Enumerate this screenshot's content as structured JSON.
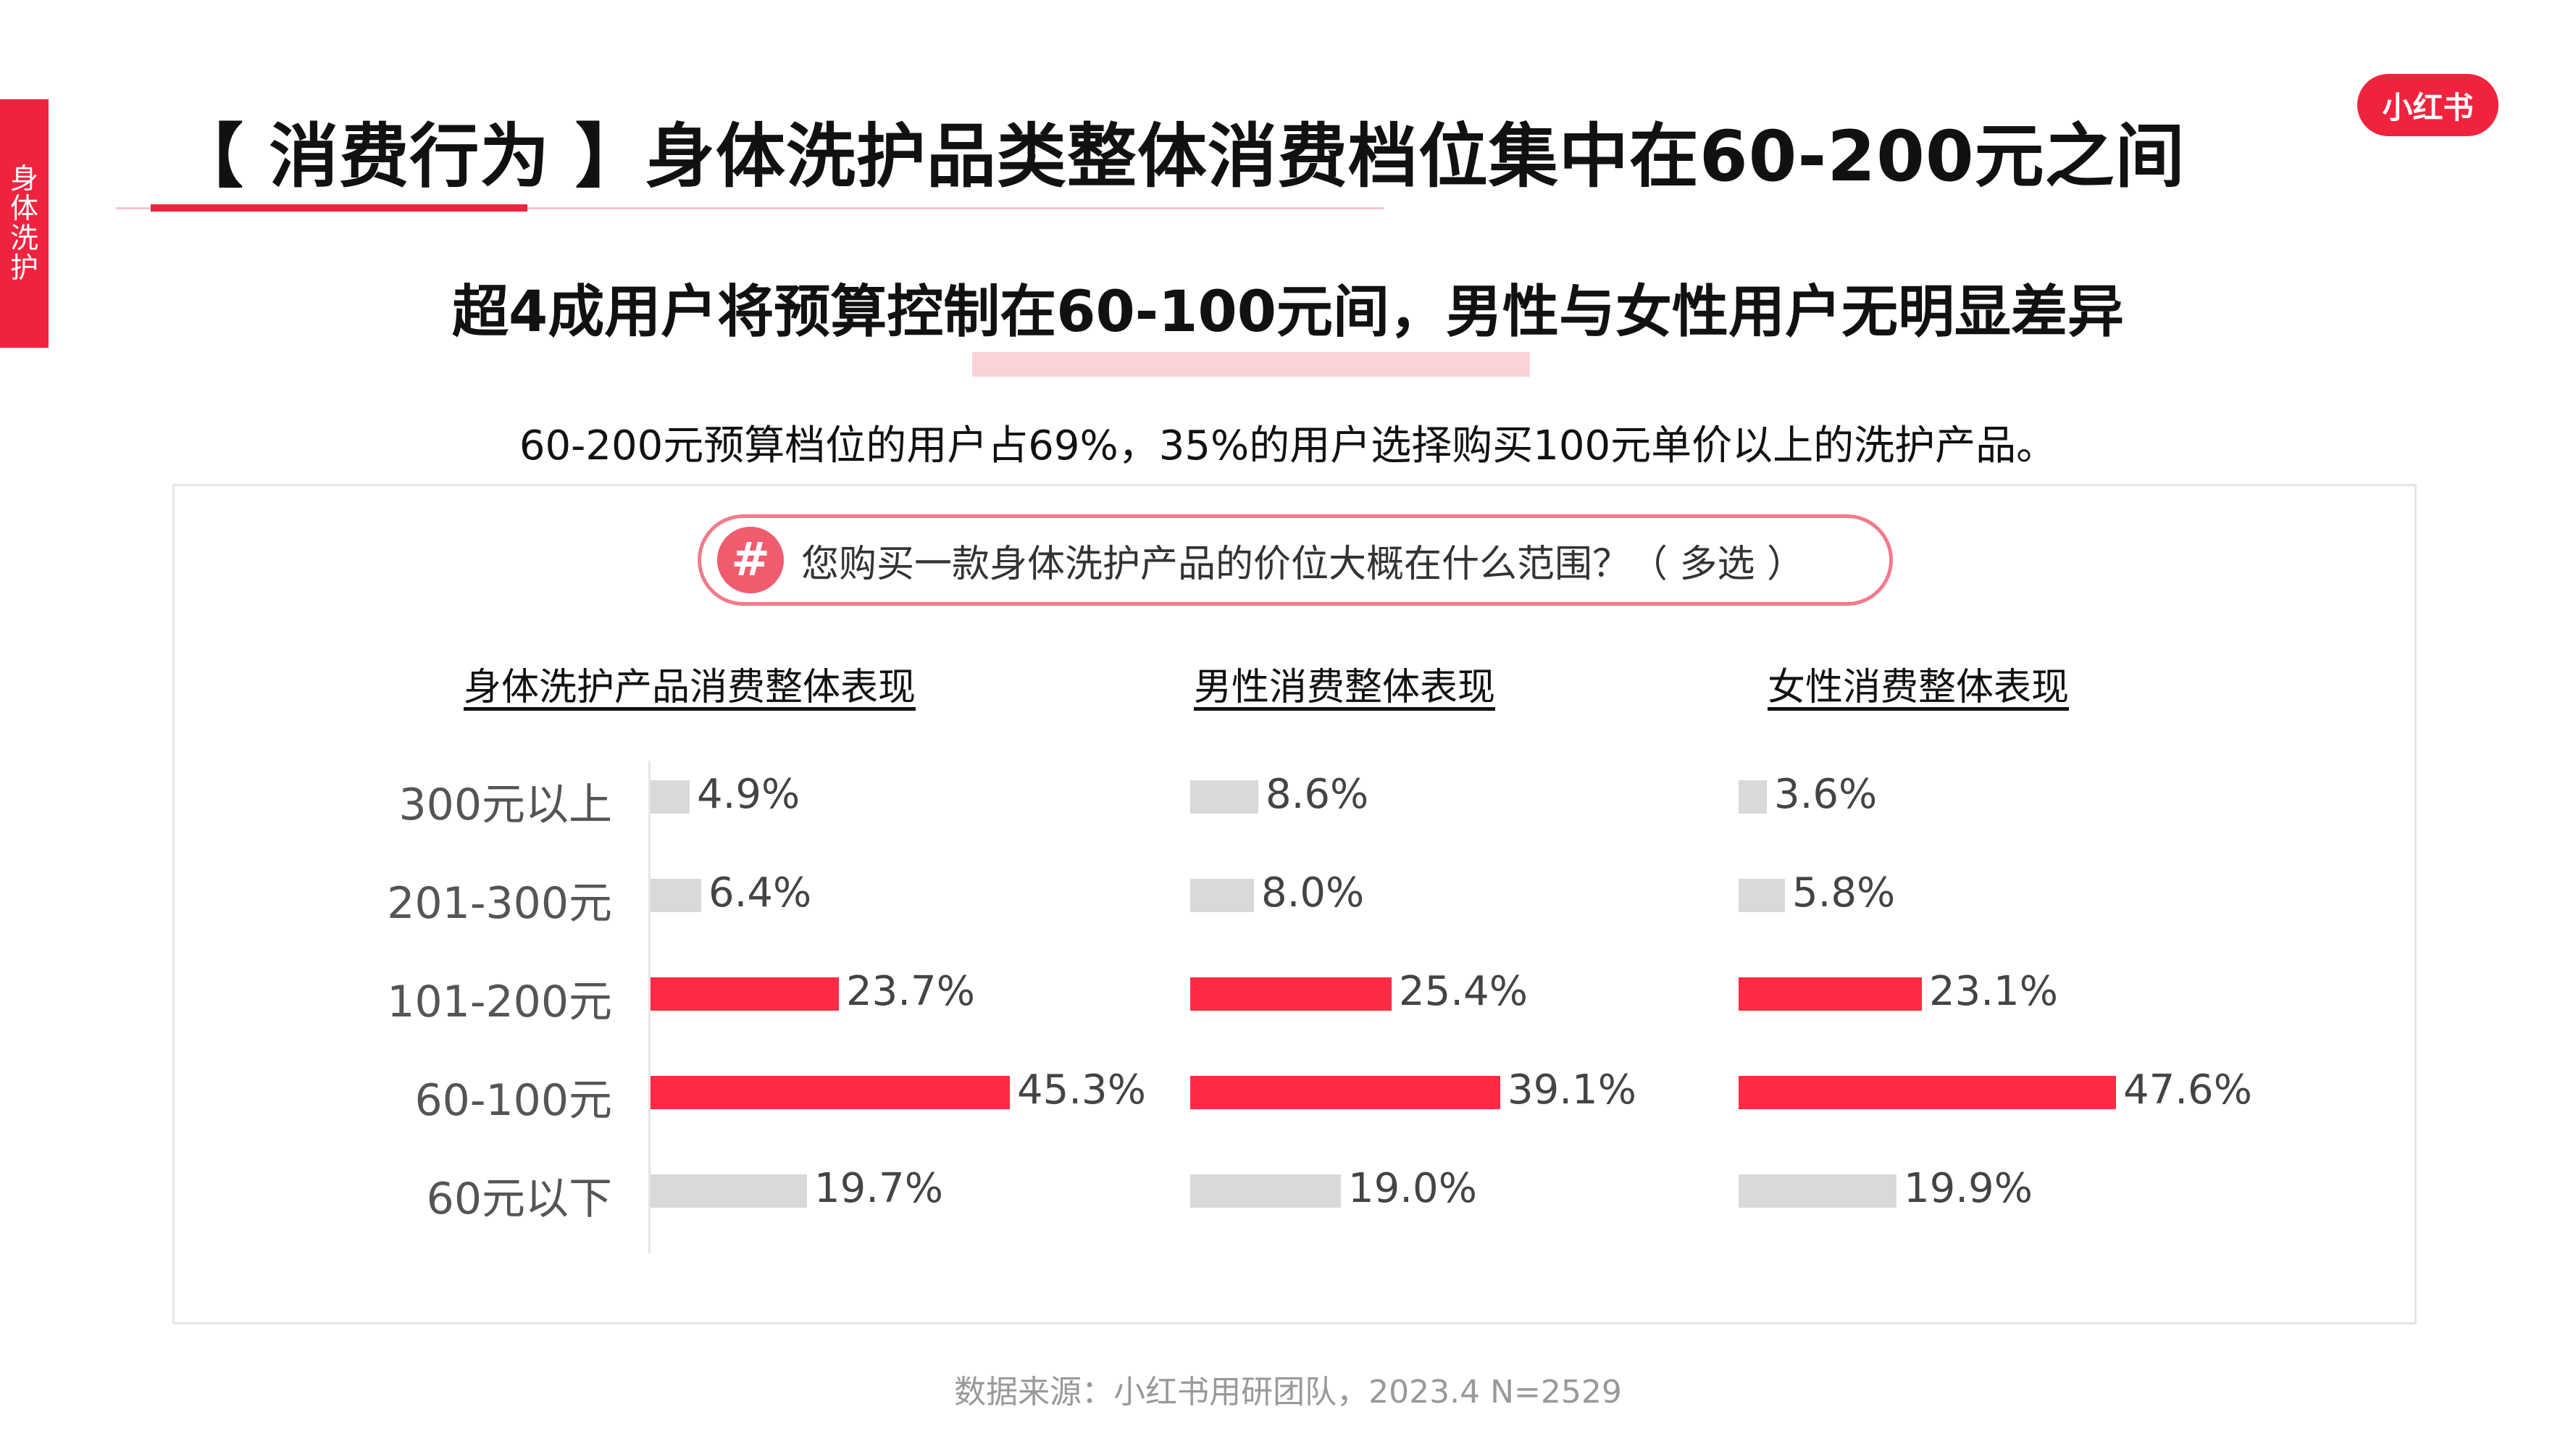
{
  "side_tab": {
    "label": "身体洗护"
  },
  "logo": {
    "text": "小红书"
  },
  "title": "【 消费行为 】身体洗护品类整体消费档位集中在60-200元之间",
  "subtitle": "超4成用户将预算控制在60-100元间，男性与女性用户无明显差异",
  "description": "60-200元预算档位的用户占69%，35%的用户选择购买100元单价以上的洗护产品。",
  "question": {
    "icon": "#",
    "text": "您购买一款身体洗护产品的价位大概在什么范围？（ 多选 ）"
  },
  "source": "数据来源：小红书用研团队，2023.4 N=2529",
  "colors": {
    "accent": "#f0233f",
    "bar_highlight": "#ff2a44",
    "bar_normal": "#d9d9d9"
  },
  "chart_data": {
    "type": "bar",
    "orientation": "horizontal",
    "unit": "%",
    "categories": [
      "300元以上",
      "201-300元",
      "101-200元",
      "60-100元",
      "60元以下"
    ],
    "highlighted_categories": [
      "101-200元",
      "60-100元"
    ],
    "groups": [
      {
        "title": "身体洗护产品消费整体表现",
        "values": [
          4.9,
          6.4,
          23.7,
          45.3,
          19.7
        ],
        "labels": [
          "4.9%",
          "6.4%",
          "23.7%",
          "45.3%",
          "19.7%"
        ]
      },
      {
        "title": "男性消费整体表现",
        "values": [
          8.6,
          8.0,
          25.4,
          39.1,
          19.0
        ],
        "labels": [
          "8.6%",
          "8.0%",
          "25.4%",
          "39.1%",
          "19.0%"
        ]
      },
      {
        "title": "女性消费整体表现",
        "values": [
          3.6,
          5.8,
          23.1,
          47.6,
          19.9
        ],
        "labels": [
          "3.6%",
          "5.8%",
          "23.1%",
          "47.6%",
          "19.9%"
        ]
      }
    ]
  }
}
